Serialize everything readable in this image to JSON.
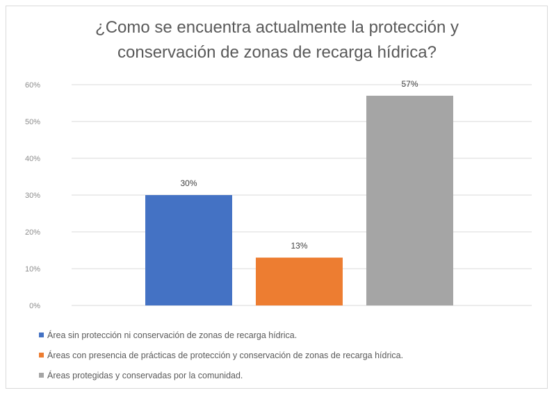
{
  "colors": {
    "grid": "#d9d9d9"
  },
  "chart_data": {
    "type": "bar",
    "title": "¿Como se encuentra actualmente la protección y conservación de zonas de recarga hídrica?",
    "title_lines": [
      "¿Como se encuentra actualmente la protección y",
      "conservación de zonas de recarga hídrica?"
    ],
    "xlabel": "",
    "ylabel": "",
    "ylim": [
      0,
      60
    ],
    "yticks": [
      0,
      10,
      20,
      30,
      40,
      50,
      60
    ],
    "ytick_labels": [
      "0%",
      "10%",
      "20%",
      "30%",
      "40%",
      "50%",
      "60%"
    ],
    "grid": true,
    "legend_position": "bottom",
    "series": [
      {
        "name": "Área sin protección ni conservación de zonas de recarga hídrica.",
        "value": 30,
        "label": "30%",
        "color": "#4472c4"
      },
      {
        "name": "Áreas con presencia de prácticas de protección y conservación de zonas de recarga hídrica.",
        "value": 13,
        "label": "13%",
        "color": "#ed7d31"
      },
      {
        "name": "Áreas protegidas y conservadas por la comunidad.",
        "value": 57,
        "label": "57%",
        "color": "#a5a5a5"
      }
    ]
  }
}
